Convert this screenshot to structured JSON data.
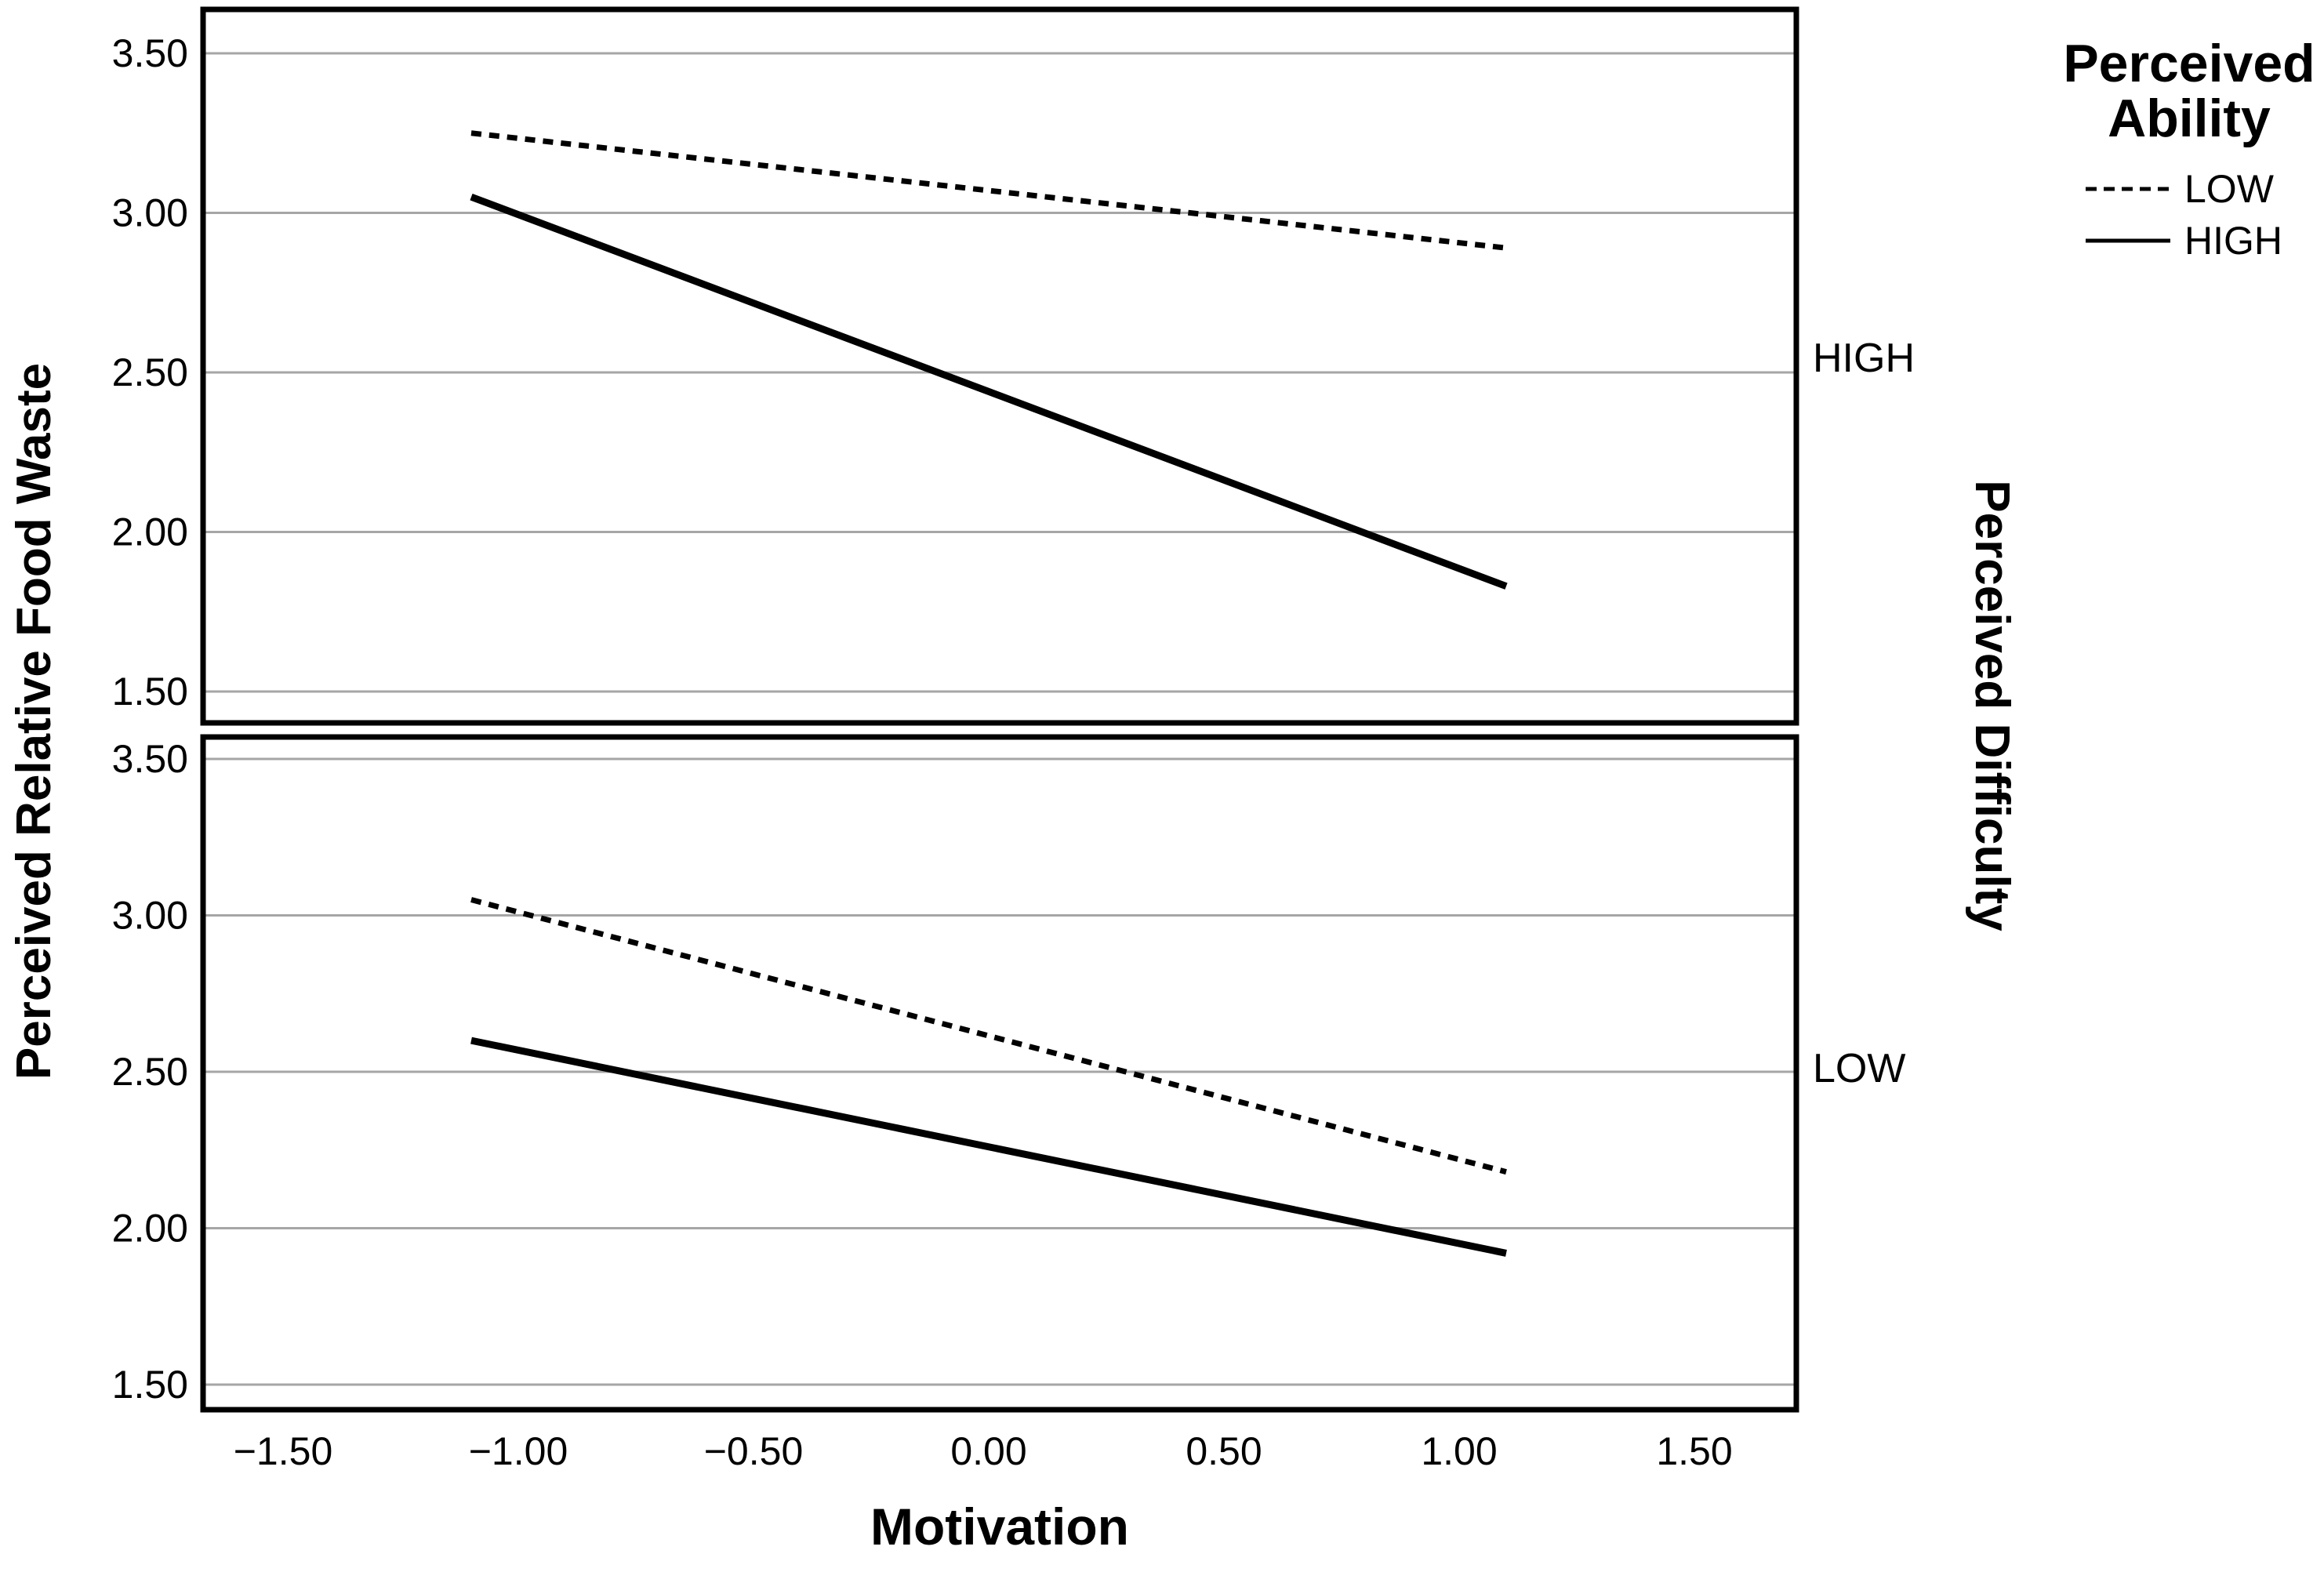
{
  "colors": {
    "background": "#ffffff",
    "text": "#000000",
    "line": "#000000",
    "gridline": "#a6a6a6",
    "border": "#000000"
  },
  "chart_data": {
    "type": "line",
    "title": "",
    "xlabel": "Motivation",
    "ylabel": "Perceived Relative Food Waste",
    "right_axis_label": "Perceived Difficulty",
    "grid": true,
    "xlim": [
      -1.72,
      1.72
    ],
    "ylim": [
      1.39,
      3.63
    ],
    "x_ticks": [
      -1.5,
      -1.0,
      -0.5,
      0.0,
      0.5,
      1.0,
      1.5
    ],
    "x_tick_labels": [
      "−1.50",
      "−1.00",
      "−0.50",
      "0.00",
      "0.50",
      "1.00",
      "1.50"
    ],
    "y_ticks": [
      3.5,
      3.0,
      2.5,
      2.0,
      1.5
    ],
    "y_tick_labels": [
      "3.50",
      "3.00",
      "2.50",
      "2.00",
      "1.50"
    ],
    "legend": {
      "position": "top-right",
      "title_lines": [
        "Perceived",
        "Ability"
      ],
      "entries": [
        {
          "label": "LOW",
          "style": "dashed"
        },
        {
          "label": "HIGH",
          "style": "solid"
        }
      ]
    },
    "panels": [
      {
        "facet_label": "HIGH",
        "series": [
          {
            "name": "LOW",
            "style": "dashed",
            "points": [
              [
                -1.1,
                3.25
              ],
              [
                1.1,
                2.89
              ]
            ]
          },
          {
            "name": "HIGH",
            "style": "solid",
            "points": [
              [
                -1.1,
                3.05
              ],
              [
                1.1,
                1.83
              ]
            ]
          }
        ]
      },
      {
        "facet_label": "LOW",
        "series": [
          {
            "name": "LOW",
            "style": "dashed",
            "points": [
              [
                -1.1,
                3.05
              ],
              [
                1.1,
                2.18
              ]
            ]
          },
          {
            "name": "HIGH",
            "style": "solid",
            "points": [
              [
                -1.1,
                2.6
              ],
              [
                1.1,
                1.92
              ]
            ]
          }
        ]
      }
    ]
  }
}
